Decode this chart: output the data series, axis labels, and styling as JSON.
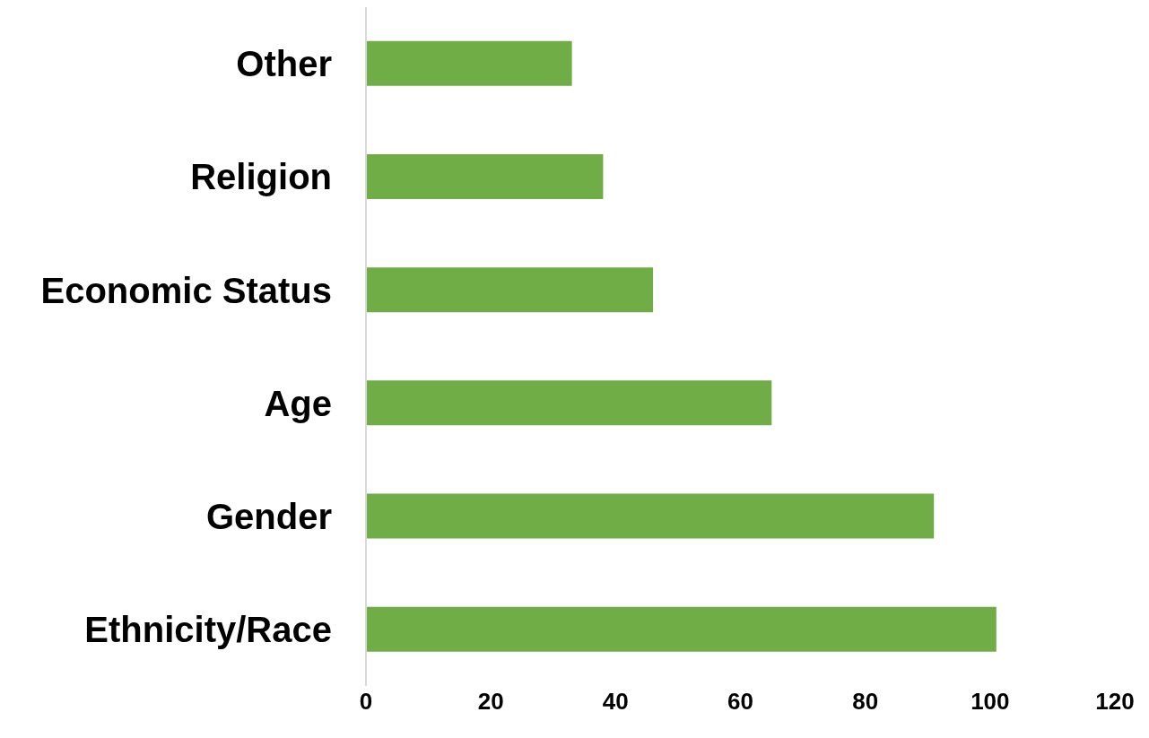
{
  "chart_data": {
    "type": "bar",
    "orientation": "horizontal",
    "categories": [
      "Other",
      "Religion",
      "Economic Status",
      "Age",
      "Gender",
      "Ethnicity/Race"
    ],
    "values": [
      33,
      38,
      46,
      65,
      91,
      101
    ],
    "color": "#70ad47",
    "xlim": [
      0,
      120
    ],
    "xticks": [
      0,
      20,
      40,
      60,
      80,
      100,
      120
    ],
    "grid": false
  }
}
